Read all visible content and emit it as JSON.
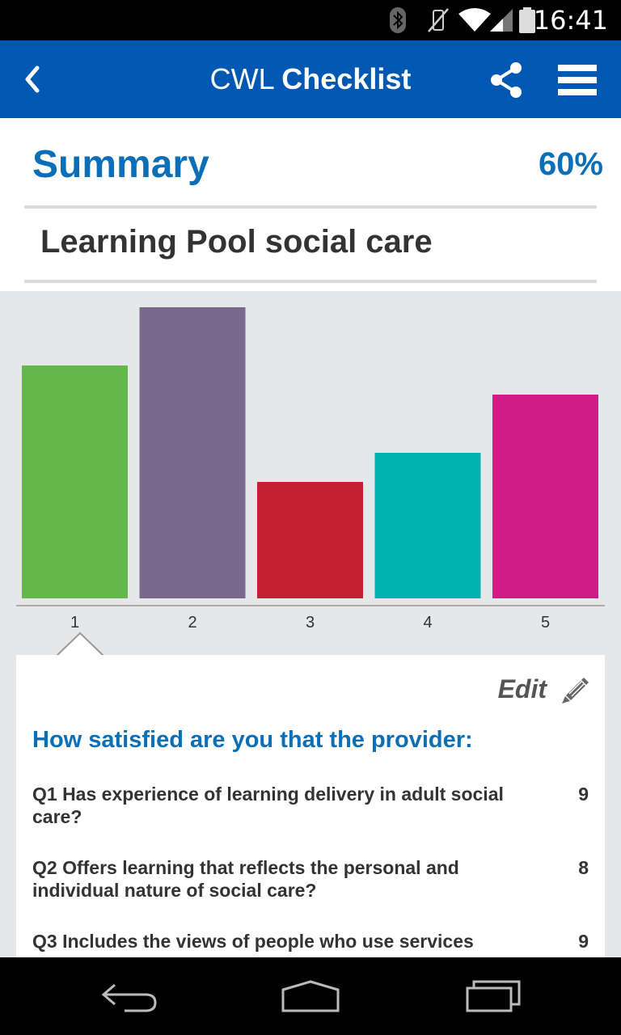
{
  "status_bar": {
    "time": "16:41",
    "icons": [
      "bluetooth-icon",
      "vibrate-icon",
      "wifi-icon",
      "signal-icon",
      "battery-icon"
    ]
  },
  "app_bar": {
    "title_light": "CWL",
    "title_bold": "Checklist",
    "icons": [
      "back-icon",
      "share-icon",
      "menu-icon"
    ]
  },
  "summary": {
    "title": "Summary",
    "percent": "60%",
    "organisation": "Learning Pool social care"
  },
  "chart_data": {
    "type": "bar",
    "categories": [
      "1",
      "2",
      "3",
      "4",
      "5"
    ],
    "values": [
      8,
      10,
      4,
      5,
      7
    ],
    "ylim": [
      0,
      10
    ],
    "colors": [
      "#63b84a",
      "#7a698f",
      "#c52030",
      "#00b2b0",
      "#d11b85"
    ],
    "grid": false,
    "selected_index": 0
  },
  "card": {
    "edit_label": "Edit",
    "heading": "How satisfied are you that the provider:",
    "questions": [
      {
        "text": "Q1  Has experience of learning delivery in adult social care?",
        "score": "9"
      },
      {
        "text": "Q2  Offers learning that reflects the personal and individual nature of social care?",
        "score": "8"
      },
      {
        "text": "Q3  Includes the views of people who use services",
        "score": "9"
      }
    ]
  },
  "nav_bar": {
    "icons": [
      "back-nav-icon",
      "home-nav-icon",
      "recents-nav-icon"
    ]
  }
}
